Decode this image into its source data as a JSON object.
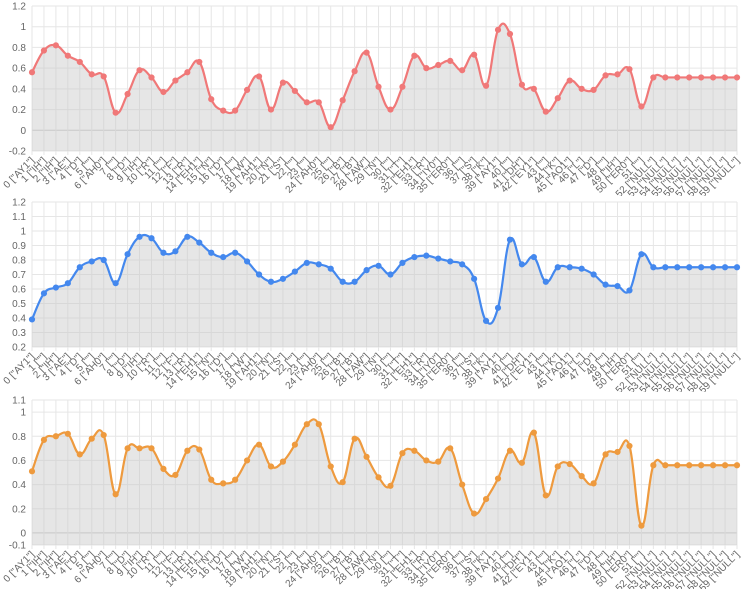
{
  "chart_data": [
    {
      "type": "area",
      "title": "",
      "color": "#f07878",
      "ylim": [
        -0.2,
        1.2
      ],
      "yticks": [
        -0.2,
        0,
        0.2,
        0.4,
        0.6,
        0.8,
        1.0,
        1.2
      ],
      "grid": true,
      "categories": [
        "0 [\"AY1\"]",
        "1 [\"IH\"]",
        "2 [\"IH\"]",
        "3 [\"AE\"]",
        "4 [\"D\"]",
        "5 [\"\"]",
        "6 [\"AH0\"]",
        "7 [\"\"]",
        "8 [\"D\"]",
        "9 [\"IH\"]",
        "10 [\"R\"]",
        "11 [\"\"]",
        "12 [\"F\"]",
        "13 [\"R\"]",
        "14 [\"EH1\"]",
        "15 [\"N\"]",
        "16 [\"D\"]",
        "17 [\"\"]",
        "18 [\"W\"]",
        "19 [\"AH1\"]",
        "20 [\"N\"]",
        "21 [\"S\"]",
        "22 [\"\"]",
        "23 [\"\"]",
        "24 [\"AH0\"]",
        "25 [\"\"]",
        "26 [\"B\"]",
        "27 [\"B\"]",
        "28 [\"AW\"]",
        "29 [\"N\"]",
        "30 [\"\"]",
        "31 [\"T\"]",
        "32 [\"EH1\"]",
        "33 [\"R\"]",
        "34 [\"IY0\"]",
        "35 [\"ER0\"]",
        "36 [\"\"]",
        "37 [\"S\"]",
        "38 [\"K\"]",
        "39 [\"AY1\"]",
        "40 [\"\"]",
        "41 [\"DH\"]",
        "42 [\"EY1\"]",
        "43 [\"\"]",
        "44 [\"K\"]",
        "45 [\"AO1\"]",
        "46 [\"L\"]",
        "47 [\"D\"]",
        "48 [\"\"]",
        "49 [\"IH\"]",
        "50 [\"ER0\"]",
        "51 [\"\"]",
        "52 [\"NULL\"]",
        "53 [\"NULL\"]",
        "54 [\"NULL\"]",
        "55 [\"NULL\"]",
        "56 [\"NULL\"]",
        "57 [\"NULL\"]",
        "58 [\"NULL\"]",
        "59 [\"NULL\"]"
      ],
      "values": [
        0.56,
        0.77,
        0.82,
        0.72,
        0.66,
        0.54,
        0.52,
        0.17,
        0.35,
        0.58,
        0.51,
        0.37,
        0.48,
        0.56,
        0.66,
        0.3,
        0.19,
        0.19,
        0.39,
        0.52,
        0.2,
        0.46,
        0.38,
        0.27,
        0.27,
        0.03,
        0.29,
        0.57,
        0.75,
        0.42,
        0.2,
        0.42,
        0.72,
        0.6,
        0.63,
        0.67,
        0.58,
        0.73,
        0.43,
        0.97,
        0.93,
        0.44,
        0.4,
        0.18,
        0.31,
        0.48,
        0.4,
        0.39,
        0.53,
        0.54,
        0.59,
        0.23,
        0.51,
        0.51,
        0.51,
        0.51,
        0.51,
        0.51,
        0.51,
        0.51
      ]
    },
    {
      "type": "area",
      "title": "",
      "color": "#4488ee",
      "ylim": [
        0.2,
        1.2
      ],
      "yticks": [
        0.2,
        0.3,
        0.4,
        0.5,
        0.6,
        0.7,
        0.8,
        0.9,
        1.0,
        1.1,
        1.2
      ],
      "grid": true,
      "categories": [
        "0 [\"AY1\"]",
        "1 [\"\"]",
        "2 [\"IH\"]",
        "3 [\"AE\"]",
        "4 [\"D\"]",
        "5 [\"\"]",
        "6 [\"AH0\"]",
        "7 [\"\"]",
        "8 [\"D\"]",
        "9 [\"IH\"]",
        "10 [\"R\"]",
        "11 [\"\"]",
        "12 [\"F\"]",
        "13 [\"R\"]",
        "14 [\"EH1\"]",
        "15 [\"N\"]",
        "16 [\"D\"]",
        "17 [\"\"]",
        "18 [\"W\"]",
        "19 [\"AH1\"]",
        "20 [\"N\"]",
        "21 [\"S\"]",
        "22 [\"\"]",
        "23 [\"\"]",
        "24 [\"AH0\"]",
        "25 [\"\"]",
        "26 [\"B\"]",
        "27 [\"B\"]",
        "28 [\"AW\"]",
        "29 [\"N\"]",
        "30 [\"\"]",
        "31 [\"T\"]",
        "32 [\"EH1\"]",
        "33 [\"R\"]",
        "34 [\"IY0\"]",
        "35 [\"ER0\"]",
        "36 [\"\"]",
        "37 [\"S\"]",
        "38 [\"K\"]",
        "39 [\"AY1\"]",
        "40 [\"\"]",
        "41 [\"DH\"]",
        "42 [\"EY1\"]",
        "43 [\"\"]",
        "44 [\"K\"]",
        "45 [\"AO1\"]",
        "46 [\"L\"]",
        "47 [\"D\"]",
        "48 [\"\"]",
        "49 [\"IH\"]",
        "50 [\"ER0\"]",
        "51 [\"\"]",
        "52 [\"NULL\"]",
        "53 [\"NULL\"]",
        "54 [\"NULL\"]",
        "55 [\"NULL\"]",
        "56 [\"NULL\"]",
        "57 [\"NULL\"]",
        "58 [\"NULL\"]",
        "59 [\"NULL\"]"
      ],
      "values": [
        0.39,
        0.57,
        0.61,
        0.64,
        0.75,
        0.79,
        0.8,
        0.64,
        0.84,
        0.96,
        0.95,
        0.85,
        0.86,
        0.96,
        0.92,
        0.85,
        0.82,
        0.85,
        0.79,
        0.7,
        0.65,
        0.67,
        0.72,
        0.78,
        0.77,
        0.74,
        0.65,
        0.65,
        0.73,
        0.76,
        0.7,
        0.78,
        0.82,
        0.83,
        0.81,
        0.79,
        0.77,
        0.67,
        0.38,
        0.47,
        0.94,
        0.77,
        0.82,
        0.65,
        0.75,
        0.75,
        0.74,
        0.7,
        0.63,
        0.62,
        0.59,
        0.84,
        0.75,
        0.75,
        0.75,
        0.75,
        0.75,
        0.75,
        0.75,
        0.75
      ]
    },
    {
      "type": "area",
      "title": "",
      "color": "#ee9a3e",
      "ylim": [
        -0.1,
        1.1
      ],
      "yticks": [
        -0.1,
        0,
        0.2,
        0.4,
        0.6,
        0.8,
        1.0,
        1.1
      ],
      "grid": true,
      "categories": [
        "0 [\"AY1\"]",
        "1 [\"IH\"]",
        "2 [\"IH\"]",
        "3 [\"AE\"]",
        "4 [\"D\"]",
        "5 [\"\"]",
        "6 [\"AH0\"]",
        "7 [\"\"]",
        "8 [\"D\"]",
        "9 [\"IH\"]",
        "10 [\"R\"]",
        "11 [\"\"]",
        "12 [\"F\"]",
        "13 [\"R\"]",
        "14 [\"EH1\"]",
        "15 [\"N\"]",
        "16 [\"D\"]",
        "17 [\"\"]",
        "18 [\"W\"]",
        "19 [\"AH1\"]",
        "20 [\"N\"]",
        "21 [\"S\"]",
        "22 [\"\"]",
        "23 [\"\"]",
        "24 [\"AH0\"]",
        "25 [\"\"]",
        "26 [\"B\"]",
        "27 [\"B\"]",
        "28 [\"AW\"]",
        "29 [\"N\"]",
        "30 [\"\"]",
        "31 [\"T\"]",
        "32 [\"EH1\"]",
        "33 [\"R\"]",
        "34 [\"IY0\"]",
        "35 [\"ER0\"]",
        "36 [\"\"]",
        "37 [\"S\"]",
        "38 [\"K\"]",
        "39 [\"AY1\"]",
        "40 [\"\"]",
        "41 [\"DH\"]",
        "42 [\"EY1\"]",
        "43 [\"\"]",
        "44 [\"K\"]",
        "45 [\"AO1\"]",
        "46 [\"L\"]",
        "47 [\"D\"]",
        "48 [\"\"]",
        "49 [\"IH\"]",
        "50 [\"ER0\"]",
        "51 [\"\"]",
        "52 [\"NULL\"]",
        "53 [\"NULL\"]",
        "54 [\"NULL\"]",
        "55 [\"NULL\"]",
        "56 [\"NULL\"]",
        "57 [\"NULL\"]",
        "58 [\"NULL\"]",
        "59 [\"NULL\"]"
      ],
      "values": [
        0.51,
        0.77,
        0.8,
        0.82,
        0.65,
        0.78,
        0.81,
        0.32,
        0.7,
        0.7,
        0.7,
        0.53,
        0.48,
        0.68,
        0.69,
        0.44,
        0.41,
        0.44,
        0.6,
        0.73,
        0.55,
        0.59,
        0.73,
        0.9,
        0.9,
        0.55,
        0.42,
        0.78,
        0.63,
        0.46,
        0.39,
        0.66,
        0.68,
        0.6,
        0.59,
        0.7,
        0.4,
        0.16,
        0.28,
        0.45,
        0.68,
        0.58,
        0.83,
        0.31,
        0.55,
        0.57,
        0.47,
        0.41,
        0.65,
        0.67,
        0.72,
        0.06,
        0.56,
        0.56,
        0.56,
        0.56,
        0.56,
        0.56,
        0.56,
        0.56
      ]
    }
  ]
}
